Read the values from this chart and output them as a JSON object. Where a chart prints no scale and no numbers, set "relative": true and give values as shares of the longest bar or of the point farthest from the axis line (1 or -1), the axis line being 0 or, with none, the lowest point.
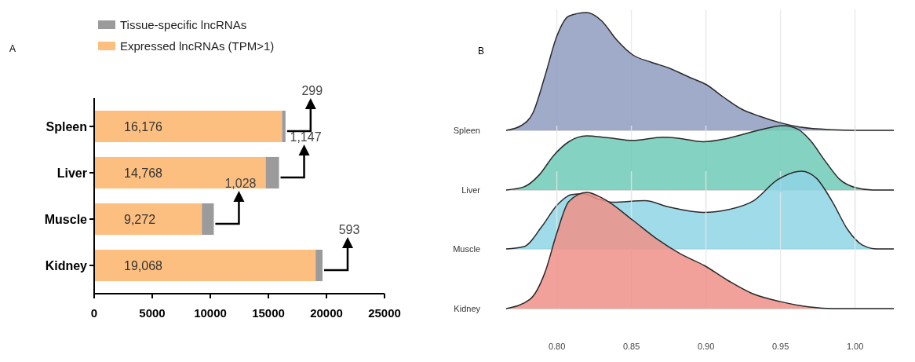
{
  "chart_data": [
    {
      "type": "bar",
      "title": "A",
      "orientation": "horizontal",
      "stacked": true,
      "categories": [
        "Spleen",
        "Liver",
        "Muscle",
        "Kidney"
      ],
      "series": [
        {
          "name": "Expressed lncRNAs (TPM>1)",
          "color": "#fdbf80",
          "values": [
            16176,
            14768,
            9272,
            19068
          ],
          "value_labels": [
            "16,176",
            "14,768",
            "9,272",
            "19,068"
          ]
        },
        {
          "name": "Tissue-specific lncRNAs",
          "color": "#9b9b9b",
          "values": [
            299,
            1147,
            1028,
            593
          ],
          "value_labels": [
            "299",
            "1,147",
            "1,028",
            "593"
          ]
        }
      ],
      "xlim": [
        0,
        25000
      ],
      "xticks": [
        0,
        5000,
        10000,
        15000,
        20000,
        25000
      ],
      "legend": "top"
    },
    {
      "type": "area",
      "title": "B",
      "relative": true,
      "ylabel": "Spleen",
      "xlim": [
        0.766,
        1.026
      ],
      "xticks": [
        {
          "value": 0.8,
          "label": null
        },
        {
          "value": 0.85,
          "label": null
        },
        {
          "value": 0.9,
          "label": null
        },
        {
          "value": 0.95,
          "label": null
        },
        {
          "value": 1.0,
          "label": null
        }
      ],
      "grid": "x",
      "tick_labels": false,
      "series": [
        {
          "color": "#8e9cc0",
          "x": [
            0.766,
            0.776,
            0.784,
            0.792,
            0.8,
            0.808,
            0.82,
            0.83,
            0.84,
            0.851,
            0.863,
            0.875,
            0.889,
            0.9,
            0.912,
            0.924,
            0.936,
            0.95,
            0.964,
            0.985,
            1.0,
            1.026
          ],
          "values": [
            0,
            0.04,
            0.15,
            0.46,
            0.8,
            0.97,
            1,
            0.93,
            0.77,
            0.64,
            0.58,
            0.53,
            0.45,
            0.39,
            0.28,
            0.18,
            0.12,
            0.064,
            0.026,
            0.005,
            0,
            0
          ]
        }
      ]
    },
    {
      "type": "area",
      "relative": true,
      "ylabel": "Liver",
      "xlim": [
        0.766,
        1.026
      ],
      "xticks": [
        {
          "value": 0.8,
          "label": null
        },
        {
          "value": 0.85,
          "label": null
        },
        {
          "value": 0.9,
          "label": null
        },
        {
          "value": 0.95,
          "label": null
        },
        {
          "value": 1.0,
          "label": null
        }
      ],
      "grid": "x",
      "tick_labels": false,
      "series": [
        {
          "color": "#6fcab6",
          "x": [
            0.766,
            0.778,
            0.788,
            0.798,
            0.808,
            0.82,
            0.835,
            0.851,
            0.871,
            0.883,
            0.898,
            0.914,
            0.934,
            0.952,
            0.962,
            0.97,
            0.98,
            0.99,
            1.0,
            1.012,
            1.026
          ],
          "values": [
            0,
            0.05,
            0.23,
            0.54,
            0.75,
            0.84,
            0.81,
            0.77,
            0.82,
            0.8,
            0.75,
            0.8,
            0.92,
            1,
            0.94,
            0.77,
            0.45,
            0.16,
            0.04,
            0,
            0
          ]
        }
      ]
    },
    {
      "type": "area",
      "relative": true,
      "ylabel": "Muscle",
      "xlim": [
        0.766,
        1.026
      ],
      "xticks": [
        {
          "value": 0.8,
          "label": null
        },
        {
          "value": 0.85,
          "label": null
        },
        {
          "value": 0.9,
          "label": null
        },
        {
          "value": 0.95,
          "label": null
        },
        {
          "value": 1.0,
          "label": null
        }
      ],
      "grid": "x",
      "tick_labels": false,
      "series": [
        {
          "color": "#8fd5e5",
          "x": [
            0.766,
            0.778,
            0.79,
            0.8,
            0.81,
            0.818,
            0.828,
            0.838,
            0.859,
            0.875,
            0.898,
            0.916,
            0.932,
            0.948,
            0.964,
            0.974,
            0.985,
            0.995,
            1.005,
            1.015,
            1.026
          ],
          "values": [
            0,
            0.03,
            0.29,
            0.56,
            0.7,
            0.71,
            0.64,
            0.6,
            0.62,
            0.54,
            0.47,
            0.51,
            0.62,
            0.89,
            1,
            0.91,
            0.6,
            0.25,
            0.05,
            0,
            0
          ]
        }
      ]
    },
    {
      "type": "area",
      "relative": true,
      "ylabel": "Kidney",
      "xlim": [
        0.766,
        1.026
      ],
      "xticks": [
        {
          "value": 0.8,
          "label": "0.80"
        },
        {
          "value": 0.85,
          "label": "0.85"
        },
        {
          "value": 0.9,
          "label": "0.90"
        },
        {
          "value": 0.95,
          "label": "0.95"
        },
        {
          "value": 1.0,
          "label": "1.00"
        }
      ],
      "grid": "x",
      "tick_labels": "x",
      "series": [
        {
          "color": "#ee9087",
          "x": [
            0.766,
            0.782,
            0.792,
            0.8,
            0.808,
            0.82,
            0.832,
            0.851,
            0.867,
            0.883,
            0.899,
            0.915,
            0.931,
            0.95,
            0.97,
            0.985,
            1.026
          ],
          "values": [
            0,
            0.08,
            0.31,
            0.65,
            0.92,
            1,
            0.94,
            0.76,
            0.6,
            0.47,
            0.37,
            0.24,
            0.13,
            0.06,
            0.013,
            0,
            0
          ]
        }
      ]
    }
  ]
}
